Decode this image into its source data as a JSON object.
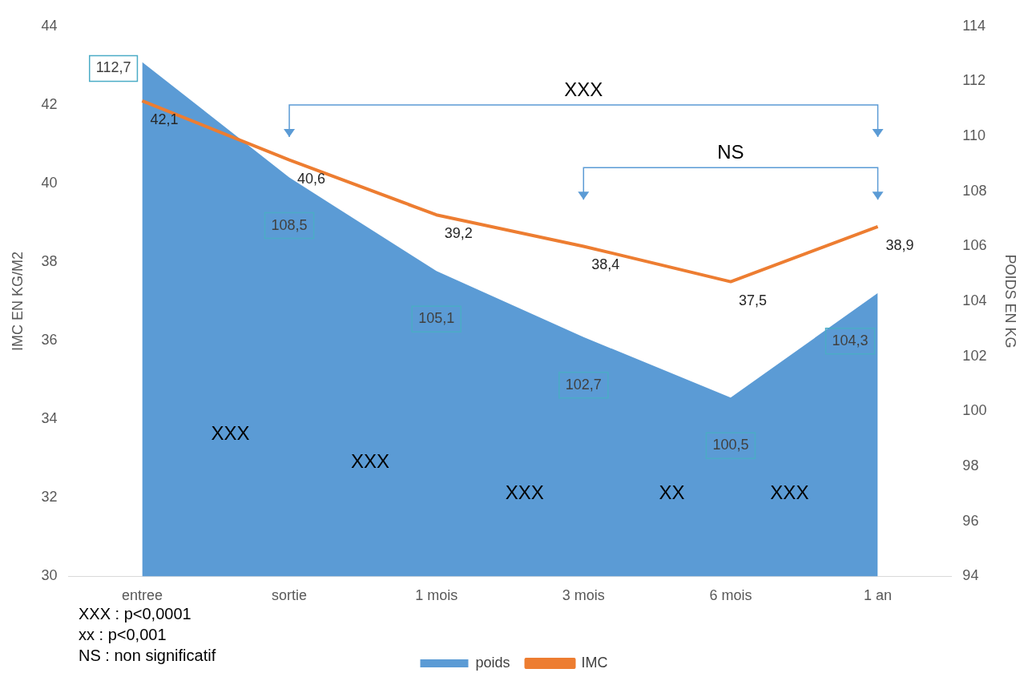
{
  "chart_data": {
    "type": "line",
    "categories": [
      "entree",
      "sortie",
      "1 mois",
      "3 mois",
      "6 mois",
      "1 an"
    ],
    "series": [
      {
        "name": "poids",
        "type": "area",
        "axis": "y2",
        "color": "#5b9bd5",
        "values": [
          112.7,
          108.5,
          105.1,
          102.7,
          100.5,
          104.3
        ],
        "value_labels": [
          "112,7",
          "108,5",
          "105,1",
          "102,7",
          "100,5",
          "104,3"
        ]
      },
      {
        "name": "IMC",
        "type": "line",
        "color": "#ed7d31",
        "values": [
          42.1,
          40.6,
          39.2,
          38.4,
          37.5,
          38.9
        ],
        "value_labels": [
          "42,1",
          "40,6",
          "39,2",
          "38,4",
          "37,5",
          "38,9"
        ]
      }
    ],
    "ylabel": "IMC EN KG/M2",
    "y2label": "POIDS EN KG",
    "ylim": [
      30,
      44
    ],
    "yticks": [
      30,
      32,
      34,
      36,
      38,
      40,
      42,
      44
    ],
    "y2lim": [
      94,
      114
    ],
    "y2ticks": [
      94,
      96,
      98,
      100,
      102,
      104,
      106,
      108,
      110,
      112,
      114
    ],
    "grid": false,
    "legend": "bottom",
    "marker": "none",
    "line_style": "solid",
    "annotations": [
      "XXX",
      "NS",
      "XXX",
      "XXX",
      "XXX",
      "XX",
      "XXX",
      "XXX : p<0,0001",
      "xx : p<0,001",
      "NS : non significatif"
    ]
  }
}
